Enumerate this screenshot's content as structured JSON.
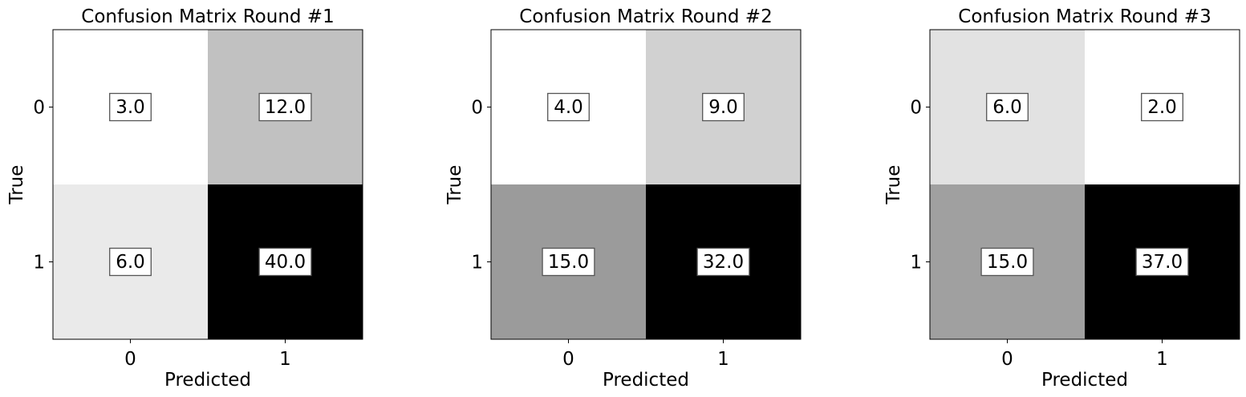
{
  "chart_data": [
    {
      "type": "heatmap",
      "title": "Confusion Matrix Round #1",
      "xlabel": "Predicted",
      "ylabel": "True",
      "x_categories": [
        "0",
        "1"
      ],
      "y_categories": [
        "0",
        "1"
      ],
      "values": [
        [
          3.0,
          12.0
        ],
        [
          6.0,
          40.0
        ]
      ],
      "cell_labels": [
        [
          "3.0",
          "12.0"
        ],
        [
          "6.0",
          "40.0"
        ]
      ],
      "colormap": "Greys"
    },
    {
      "type": "heatmap",
      "title": "Confusion Matrix Round #2",
      "xlabel": "Predicted",
      "ylabel": "True",
      "x_categories": [
        "0",
        "1"
      ],
      "y_categories": [
        "0",
        "1"
      ],
      "values": [
        [
          4.0,
          9.0
        ],
        [
          15.0,
          32.0
        ]
      ],
      "cell_labels": [
        [
          "4.0",
          "9.0"
        ],
        [
          "15.0",
          "32.0"
        ]
      ],
      "colormap": "Greys"
    },
    {
      "type": "heatmap",
      "title": "Confusion Matrix Round #3",
      "xlabel": "Predicted",
      "ylabel": "True",
      "x_categories": [
        "0",
        "1"
      ],
      "y_categories": [
        "0",
        "1"
      ],
      "values": [
        [
          6.0,
          2.0
        ],
        [
          15.0,
          37.0
        ]
      ],
      "cell_labels": [
        [
          "6.0",
          "2.0"
        ],
        [
          "15.0",
          "37.0"
        ]
      ],
      "colormap": "Greys"
    }
  ]
}
